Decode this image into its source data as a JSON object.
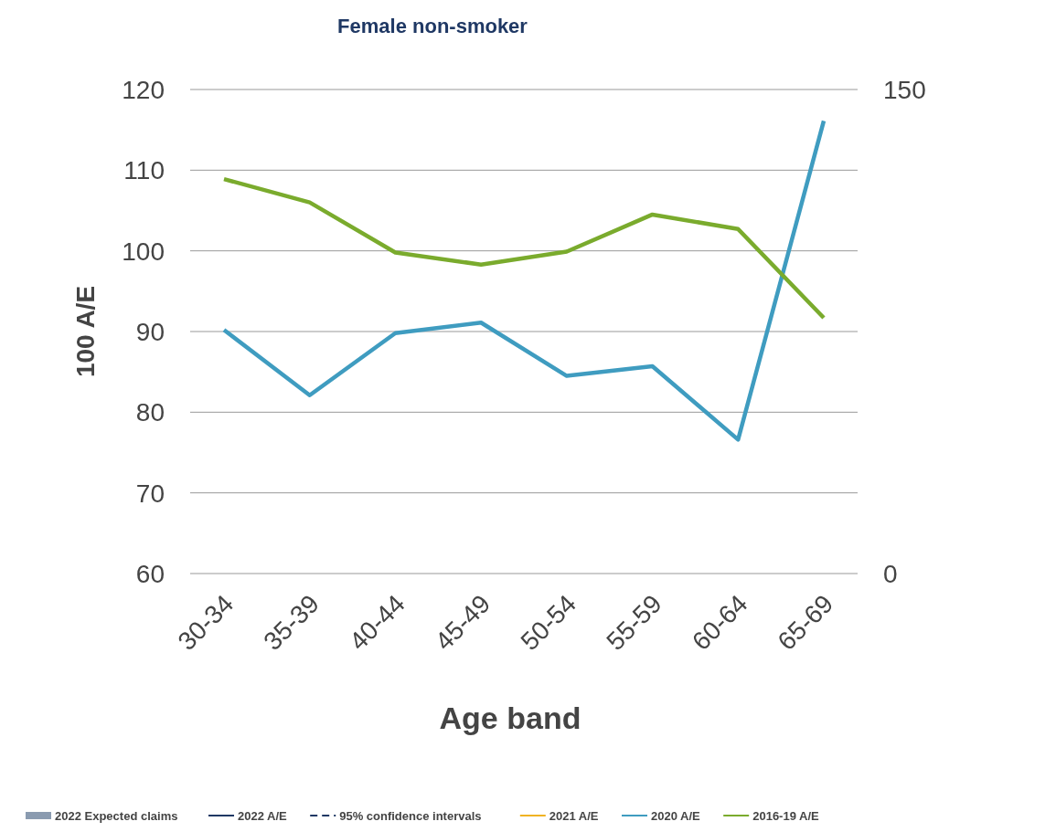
{
  "chart_data": {
    "type": "line",
    "title": "Female non-smoker",
    "xlabel": "Age band",
    "ylabel": "100 A/E",
    "categories": [
      "30-34",
      "35-39",
      "40-44",
      "45-49",
      "50-54",
      "55-59",
      "60-64",
      "65-69"
    ],
    "series": [
      {
        "name": "2022 Expected claims",
        "type": "bar",
        "color": "#8a9bb0",
        "values": [
          null,
          null,
          null,
          null,
          null,
          null,
          null,
          null
        ]
      },
      {
        "name": "2022 A/E",
        "color": "#1f3864",
        "values": [
          null,
          null,
          null,
          null,
          null,
          null,
          null,
          null
        ]
      },
      {
        "name": "95% confidence intervals",
        "color": "#1f3864",
        "line_style": "dashed",
        "values": [
          null,
          null,
          null,
          null,
          null,
          null,
          null,
          null
        ]
      },
      {
        "name": "2021 A/E",
        "color": "#f0b323",
        "values": [
          null,
          null,
          null,
          null,
          null,
          null,
          null,
          null
        ]
      },
      {
        "name": "2020 A/E",
        "color": "#3f9cc0",
        "values": [
          90.2,
          82.1,
          89.8,
          91.1,
          84.5,
          85.7,
          76.6,
          116.1
        ]
      },
      {
        "name": "2016-19 A/E",
        "color": "#7aab2d",
        "values": [
          108.9,
          106.0,
          99.8,
          98.3,
          99.9,
          104.5,
          102.7,
          91.7
        ]
      }
    ],
    "ylim": [
      60,
      120
    ],
    "yticks": [
      60,
      70,
      80,
      90,
      100,
      110,
      120
    ],
    "y2lim": [
      0,
      150
    ],
    "y2ticks": [
      0,
      150
    ],
    "grid": "y",
    "legend": "bottom",
    "line_style": "solid"
  }
}
